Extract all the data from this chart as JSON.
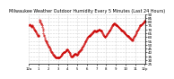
{
  "title": "Milwaukee Weather Outdoor Humidity Every 5 Minutes (Last 24 Hours)",
  "title_fontsize": 3.5,
  "background_color": "#ffffff",
  "plot_bg_color": "#ffffff",
  "grid_color": "#b0b0b0",
  "line_color": "#cc0000",
  "marker": ".",
  "markersize": 0.8,
  "ylim": [
    25,
    90
  ],
  "ylabel_fontsize": 3.0,
  "xlabel_fontsize": 2.8,
  "humidity_profile": [
    75,
    76,
    77,
    76,
    75,
    74,
    73,
    74,
    75,
    74,
    73,
    72,
    71,
    70,
    69,
    68,
    68,
    67,
    66,
    65,
    64,
    63,
    62,
    61,
    62,
    63,
    80,
    82,
    81,
    79,
    78,
    77,
    75,
    73,
    71,
    68,
    65,
    63,
    61,
    59,
    57,
    56,
    55,
    54,
    53,
    52,
    51,
    50,
    49,
    48,
    47,
    46,
    45,
    44,
    43,
    42,
    41,
    40,
    39,
    38,
    37,
    37,
    36,
    36,
    35,
    35,
    34,
    34,
    34,
    34,
    33,
    33,
    33,
    33,
    33,
    34,
    34,
    35,
    35,
    36,
    36,
    37,
    38,
    38,
    39,
    39,
    40,
    40,
    41,
    41,
    42,
    42,
    43,
    43,
    44,
    44,
    44,
    43,
    42,
    41,
    40,
    39,
    38,
    37,
    36,
    35,
    35,
    35,
    35,
    36,
    36,
    37,
    37,
    38,
    38,
    38,
    38,
    38,
    37,
    37,
    37,
    38,
    39,
    40,
    41,
    42,
    42,
    43,
    43,
    44,
    44,
    45,
    46,
    47,
    48,
    49,
    50,
    51,
    52,
    53,
    54,
    55,
    56,
    57,
    58,
    59,
    60,
    60,
    61,
    61,
    62,
    62,
    63,
    63,
    64,
    64,
    65,
    65,
    66,
    66,
    67,
    67,
    68,
    68,
    68,
    67,
    67,
    67,
    67,
    68,
    68,
    69,
    69,
    70,
    70,
    70,
    70,
    69,
    69,
    68,
    68,
    67,
    66,
    65,
    64,
    63,
    62,
    61,
    60,
    60,
    60,
    61,
    62,
    63,
    64,
    65,
    65,
    66,
    67,
    68,
    68,
    69,
    70,
    71,
    72,
    73,
    74,
    75,
    76,
    77,
    77,
    78,
    78,
    78,
    77,
    77,
    76,
    76,
    75,
    75,
    74,
    74,
    73,
    73,
    72,
    72,
    71,
    71,
    70,
    70,
    69,
    69,
    68,
    68,
    67,
    67,
    66,
    66,
    65,
    65,
    64,
    64,
    63,
    63,
    62,
    62,
    61,
    61,
    60,
    60,
    59,
    59,
    58,
    58,
    57,
    57,
    56,
    56,
    57,
    58,
    59,
    60,
    61,
    62,
    63,
    64,
    65,
    66,
    67,
    68,
    69,
    70,
    71,
    72,
    73,
    74,
    75,
    75,
    76,
    76,
    77,
    77,
    78,
    78,
    79,
    79,
    80,
    80,
    81,
    81
  ],
  "xtick_positions": [
    0,
    24,
    48,
    72,
    96,
    120,
    144,
    168,
    192,
    216,
    240,
    264,
    287
  ],
  "xtick_labels": [
    "12a",
    "1",
    "2",
    "3",
    "4",
    "5",
    "6",
    "7",
    "8",
    "9",
    "10",
    "11",
    "12p"
  ]
}
